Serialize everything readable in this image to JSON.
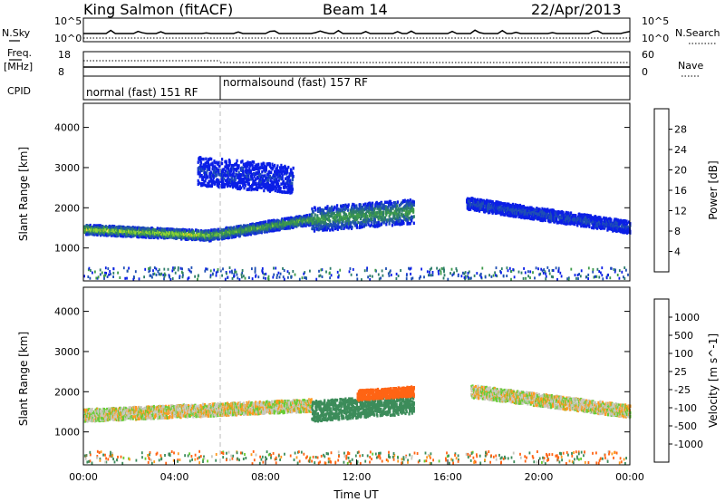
{
  "header": {
    "station": "King Salmon (fitACF)",
    "beam": "Beam 14",
    "date": "22/Apr/2013"
  },
  "noise_panel": {
    "left_label": "N.Sky",
    "right_label": "N.Search",
    "left_ticks": [
      "10^5",
      "10^0"
    ],
    "right_ticks": [
      "10^5",
      "10^0"
    ]
  },
  "freq_panel": {
    "left_label_1": "Freq.",
    "left_label_2": "[MHz]",
    "right_label": "Nave",
    "left_ticks": [
      "18",
      "8"
    ],
    "right_ticks": [
      "60",
      "0"
    ]
  },
  "cpid": {
    "label": "CPID",
    "modes": [
      {
        "text": "normal (fast) 151 RF",
        "start_hour": 0
      },
      {
        "text": "normalsound (fast) 157 RF",
        "start_hour": 6.0
      }
    ]
  },
  "colors": {
    "power": [
      "#0a1ee6",
      "#1e4fb4",
      "#2e7d6a",
      "#3c9a4a",
      "#8fd635",
      "#ffd21e",
      "#ff9a1e",
      "#ff6414",
      "#f01e14"
    ],
    "velocity": [
      "#1f2fb0",
      "#2a6aa0",
      "#3c8c5a",
      "#66cc33",
      "#c8c8be",
      "#c8c8be",
      "#ff9a1e",
      "#ff6414",
      "#ee1111"
    ]
  },
  "chart_data": [
    {
      "type": "heatmap",
      "title": "Power",
      "xlabel": "",
      "ylabel": "Slant Range [km]",
      "xlim": [
        0,
        24
      ],
      "ylim": [
        180,
        4600
      ],
      "yticks": [
        1000,
        2000,
        3000,
        4000
      ],
      "colorbar": {
        "label": "Power [dB]",
        "range": [
          0,
          32
        ],
        "ticks": [
          "4",
          "8",
          "12",
          "16",
          "20",
          "24",
          "28"
        ]
      },
      "regions": [
        {
          "name": "main_band",
          "x": [
            0,
            5.5
          ],
          "y_center": [
            1450,
            1300
          ],
          "half_width": 120,
          "value": 20
        },
        {
          "name": "main_band_mid",
          "x": [
            5.5,
            10
          ],
          "y_center": [
            1300,
            1700
          ],
          "half_width": 130,
          "value": 16
        },
        {
          "name": "patch_12_14",
          "x": [
            10,
            14.5
          ],
          "y_center": [
            1700,
            1900
          ],
          "half_width": 300,
          "value": 14
        },
        {
          "name": "upper_3000",
          "x": [
            5,
            9.2
          ],
          "y_center": [
            2900,
            2700
          ],
          "half_width": 350,
          "value": 4
        },
        {
          "name": "after_17",
          "x": [
            16.8,
            24
          ],
          "y_center": [
            2100,
            1500
          ],
          "half_width": 150,
          "value": 6
        }
      ]
    },
    {
      "type": "heatmap",
      "title": "Velocity",
      "xlabel": "Time UT",
      "ylabel": "Slant Range [km]",
      "xlim": [
        0,
        24
      ],
      "ylim": [
        180,
        4600
      ],
      "yticks": [
        1000,
        2000,
        3000,
        4000
      ],
      "xticks": [
        "00:00",
        "04:00",
        "08:00",
        "12:00",
        "16:00",
        "20:00",
        "00:00"
      ],
      "colorbar": {
        "label": "Velocity [m s^-1]",
        "ticks": [
          "1000",
          "500",
          "100",
          "25",
          "-25",
          "-100",
          "-500",
          "-1000"
        ]
      },
      "regions": [
        {
          "name": "main_band",
          "x": [
            0,
            10
          ],
          "y_center": [
            1400,
            1650
          ],
          "half_width": 150,
          "value": 0
        },
        {
          "name": "patch_positive",
          "x": [
            10,
            14.5
          ],
          "y_center": [
            1500,
            1700
          ],
          "half_width": 250,
          "value": 150
        },
        {
          "name": "patch_negative",
          "x": [
            12,
            14.5
          ],
          "y_center": [
            1900,
            2000
          ],
          "half_width": 120,
          "value": -300
        },
        {
          "name": "after_17",
          "x": [
            17,
            24
          ],
          "y_center": [
            2000,
            1500
          ],
          "half_width": 150,
          "value": 0
        }
      ]
    }
  ]
}
